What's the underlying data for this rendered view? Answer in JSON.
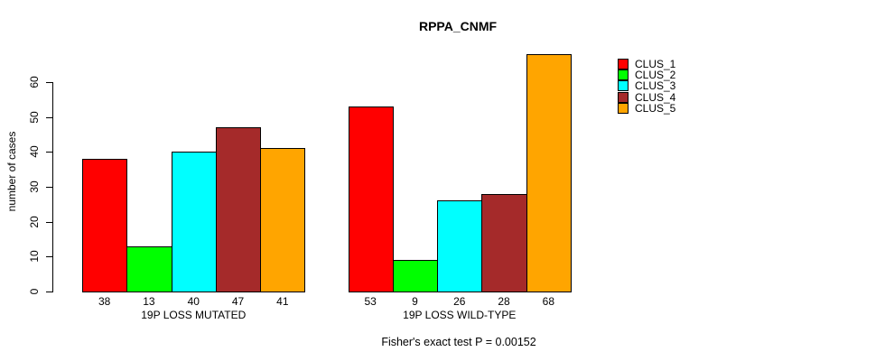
{
  "chart_data": {
    "type": "bar",
    "title": "RPPA_CNMF",
    "ylabel": "number of cases",
    "xlabel": "",
    "ylim": [
      0,
      60
    ],
    "yticks": [
      0,
      10,
      20,
      30,
      40,
      50,
      60
    ],
    "grid": false,
    "legend_position": "right",
    "bar_value_labels": true,
    "categories": [
      "19P LOSS MUTATED",
      "19P LOSS WILD-TYPE"
    ],
    "series": [
      {
        "name": "CLUS_1",
        "color": "#FF0000",
        "values": [
          38,
          53
        ]
      },
      {
        "name": "CLUS_2",
        "color": "#00FF00",
        "values": [
          13,
          9
        ]
      },
      {
        "name": "CLUS_3",
        "color": "#00FFFF",
        "values": [
          40,
          26
        ]
      },
      {
        "name": "CLUS_4",
        "color": "#A52A2A",
        "values": [
          47,
          28
        ]
      },
      {
        "name": "CLUS_5",
        "color": "#FFA500",
        "values": [
          41,
          68
        ]
      }
    ],
    "annotation": "Fisher's exact test P = 0.00152"
  }
}
